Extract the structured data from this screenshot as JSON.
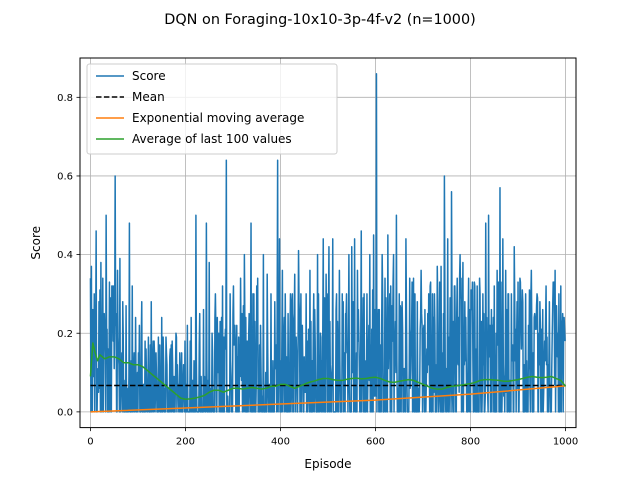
{
  "chart_data": {
    "type": "line",
    "title": "DQN on Foraging-10x10-3p-4f-v2 (n=1000)",
    "xlabel": "Episode",
    "ylabel": "Score",
    "xlim": [
      -22,
      1022
    ],
    "ylim": [
      -0.04,
      0.9
    ],
    "x_ticks": [
      0,
      200,
      400,
      600,
      800,
      1000
    ],
    "y_ticks": [
      0.0,
      0.2,
      0.4,
      0.6,
      0.8
    ],
    "x_tick_labels": [
      "0",
      "200",
      "400",
      "600",
      "800",
      "1000"
    ],
    "y_tick_labels": [
      "0.0",
      "0.2",
      "0.4",
      "0.6",
      "0.8"
    ],
    "grid": true,
    "legend_position": "top-left",
    "n_episodes": 1000,
    "series": [
      {
        "name": "Score",
        "kind": "raw-scores",
        "color": "#1f77b4",
        "style": "solid",
        "peaks": [
          [
            2,
            0.37
          ],
          [
            5,
            0.26
          ],
          [
            8,
            0.3
          ],
          [
            12,
            0.46
          ],
          [
            18,
            0.28
          ],
          [
            22,
            0.38
          ],
          [
            26,
            0.34
          ],
          [
            33,
            0.5
          ],
          [
            40,
            0.33
          ],
          [
            45,
            0.32
          ],
          [
            52,
            0.6
          ],
          [
            57,
            0.36
          ],
          [
            62,
            0.39
          ],
          [
            68,
            0.28
          ],
          [
            75,
            0.27
          ],
          [
            82,
            0.48
          ],
          [
            88,
            0.32
          ],
          [
            95,
            0.24
          ],
          [
            103,
            0.22
          ],
          [
            108,
            0.28
          ],
          [
            115,
            0.18
          ],
          [
            122,
            0.19
          ],
          [
            128,
            0.28
          ],
          [
            134,
            0.18
          ],
          [
            143,
            0.19
          ],
          [
            150,
            0.24
          ],
          [
            160,
            0.15
          ],
          [
            172,
            0.18
          ],
          [
            180,
            0.2
          ],
          [
            188,
            0.15
          ],
          [
            196,
            0.12
          ],
          [
            204,
            0.22
          ],
          [
            212,
            0.24
          ],
          [
            222,
            0.5
          ],
          [
            230,
            0.25
          ],
          [
            238,
            0.26
          ],
          [
            244,
            0.48
          ],
          [
            250,
            0.38
          ],
          [
            256,
            0.2
          ],
          [
            264,
            0.21
          ],
          [
            270,
            0.2
          ],
          [
            278,
            0.32
          ],
          [
            286,
            0.64
          ],
          [
            294,
            0.3
          ],
          [
            300,
            0.25
          ],
          [
            308,
            0.22
          ],
          [
            316,
            0.34
          ],
          [
            324,
            0.4
          ],
          [
            330,
            0.18
          ],
          [
            338,
            0.48
          ],
          [
            344,
            0.3
          ],
          [
            350,
            0.32
          ],
          [
            358,
            0.22
          ],
          [
            364,
            0.4
          ],
          [
            372,
            0.35
          ],
          [
            380,
            0.3
          ],
          [
            388,
            0.28
          ],
          [
            394,
            0.64
          ],
          [
            398,
            0.44
          ],
          [
            404,
            0.36
          ],
          [
            410,
            0.3
          ],
          [
            416,
            0.25
          ],
          [
            424,
            0.28
          ],
          [
            430,
            0.35
          ],
          [
            438,
            0.41
          ],
          [
            446,
            0.22
          ],
          [
            454,
            0.3
          ],
          [
            462,
            0.36
          ],
          [
            470,
            0.3
          ],
          [
            478,
            0.4
          ],
          [
            484,
            0.2
          ],
          [
            490,
            0.44
          ],
          [
            496,
            0.35
          ],
          [
            502,
            0.42
          ],
          [
            510,
            0.44
          ],
          [
            518,
            0.3
          ],
          [
            524,
            0.36
          ],
          [
            532,
            0.28
          ],
          [
            538,
            0.24
          ],
          [
            544,
            0.4
          ],
          [
            550,
            0.42
          ],
          [
            556,
            0.44
          ],
          [
            562,
            0.36
          ],
          [
            570,
            0.46
          ],
          [
            576,
            0.3
          ],
          [
            582,
            0.3
          ],
          [
            588,
            0.4
          ],
          [
            596,
            0.45
          ],
          [
            602,
            0.86
          ],
          [
            608,
            0.26
          ],
          [
            614,
            0.4
          ],
          [
            620,
            0.34
          ],
          [
            626,
            0.45
          ],
          [
            632,
            0.32
          ],
          [
            638,
            0.4
          ],
          [
            644,
            0.5
          ],
          [
            650,
            0.3
          ],
          [
            656,
            0.28
          ],
          [
            664,
            0.44
          ],
          [
            672,
            0.34
          ],
          [
            680,
            0.34
          ],
          [
            688,
            0.28
          ],
          [
            696,
            0.36
          ],
          [
            704,
            0.26
          ],
          [
            712,
            0.3
          ],
          [
            722,
            0.24
          ],
          [
            730,
            0.37
          ],
          [
            738,
            0.37
          ],
          [
            745,
            0.6
          ],
          [
            752,
            0.44
          ],
          [
            760,
            0.56
          ],
          [
            766,
            0.32
          ],
          [
            772,
            0.34
          ],
          [
            778,
            0.4
          ],
          [
            784,
            0.38
          ],
          [
            790,
            0.24
          ],
          [
            796,
            0.34
          ],
          [
            802,
            0.28
          ],
          [
            808,
            0.33
          ],
          [
            814,
            0.32
          ],
          [
            820,
            0.3
          ],
          [
            826,
            0.3
          ],
          [
            832,
            0.48
          ],
          [
            838,
            0.5
          ],
          [
            844,
            0.26
          ],
          [
            850,
            0.32
          ],
          [
            856,
            0.36
          ],
          [
            862,
            0.57
          ],
          [
            868,
            0.44
          ],
          [
            874,
            0.36
          ],
          [
            880,
            0.3
          ],
          [
            886,
            0.3
          ],
          [
            892,
            0.42
          ],
          [
            898,
            0.28
          ],
          [
            904,
            0.34
          ],
          [
            910,
            0.28
          ],
          [
            916,
            0.3
          ],
          [
            922,
            0.22
          ],
          [
            928,
            0.36
          ],
          [
            934,
            0.24
          ],
          [
            940,
            0.3
          ],
          [
            946,
            0.28
          ],
          [
            952,
            0.26
          ],
          [
            960,
            0.12
          ],
          [
            966,
            0.28
          ],
          [
            972,
            0.2
          ],
          [
            978,
            0.36
          ],
          [
            984,
            0.2
          ],
          [
            990,
            0.32
          ],
          [
            996,
            0.2
          ]
        ]
      },
      {
        "name": "Mean",
        "color": "#000000",
        "style": "dashed",
        "x": [
          0,
          1000
        ],
        "y": [
          0.067,
          0.067
        ]
      },
      {
        "name": "Exponential moving average",
        "color": "#ff7f0e",
        "style": "solid",
        "x": [
          0,
          200,
          400,
          600,
          800,
          1000
        ],
        "y": [
          0.0,
          0.01,
          0.02,
          0.03,
          0.045,
          0.066
        ]
      },
      {
        "name": "Average of last 100 values",
        "color": "#2ca02c",
        "style": "solid",
        "x": [
          0,
          5,
          10,
          15,
          20,
          30,
          40,
          50,
          60,
          70,
          80,
          90,
          100,
          110,
          120,
          130,
          140,
          150,
          160,
          170,
          180,
          190,
          200,
          210,
          220,
          230,
          240,
          250,
          260,
          270,
          280,
          290,
          300,
          310,
          320,
          330,
          340,
          350,
          360,
          370,
          380,
          390,
          400,
          410,
          420,
          430,
          440,
          450,
          460,
          470,
          480,
          490,
          500,
          510,
          520,
          530,
          540,
          550,
          560,
          570,
          580,
          590,
          600,
          610,
          620,
          630,
          640,
          650,
          660,
          670,
          680,
          690,
          700,
          710,
          720,
          730,
          740,
          750,
          760,
          770,
          780,
          790,
          800,
          810,
          820,
          830,
          840,
          850,
          860,
          870,
          880,
          890,
          900,
          910,
          920,
          930,
          940,
          950,
          960,
          970,
          980,
          990,
          1000
        ],
        "y": [
          0.09,
          0.175,
          0.15,
          0.13,
          0.145,
          0.135,
          0.14,
          0.14,
          0.135,
          0.125,
          0.125,
          0.12,
          0.12,
          0.115,
          0.105,
          0.095,
          0.085,
          0.075,
          0.065,
          0.055,
          0.045,
          0.035,
          0.032,
          0.033,
          0.035,
          0.038,
          0.042,
          0.05,
          0.055,
          0.055,
          0.05,
          0.055,
          0.06,
          0.06,
          0.058,
          0.06,
          0.062,
          0.06,
          0.058,
          0.06,
          0.065,
          0.065,
          0.07,
          0.07,
          0.065,
          0.06,
          0.065,
          0.07,
          0.075,
          0.078,
          0.082,
          0.085,
          0.085,
          0.082,
          0.08,
          0.08,
          0.083,
          0.085,
          0.086,
          0.084,
          0.085,
          0.087,
          0.088,
          0.085,
          0.08,
          0.076,
          0.075,
          0.078,
          0.08,
          0.082,
          0.08,
          0.075,
          0.07,
          0.065,
          0.06,
          0.058,
          0.058,
          0.062,
          0.065,
          0.066,
          0.068,
          0.07,
          0.072,
          0.075,
          0.08,
          0.082,
          0.082,
          0.081,
          0.08,
          0.078,
          0.078,
          0.08,
          0.082,
          0.085,
          0.088,
          0.09,
          0.088,
          0.087,
          0.088,
          0.09,
          0.085,
          0.08,
          0.065
        ]
      }
    ]
  }
}
